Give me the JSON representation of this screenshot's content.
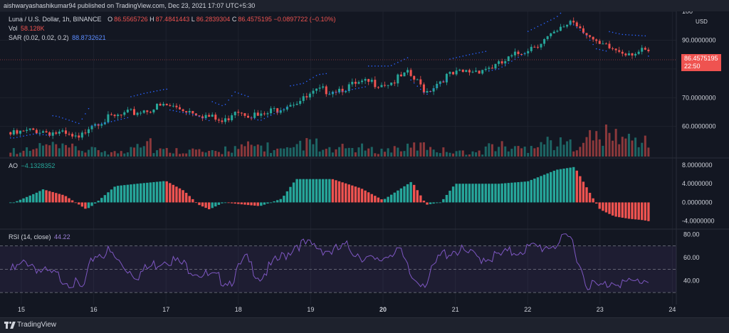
{
  "header": {
    "text": "aishwaryashashikumar94 published on TradingView.com, Dec 23, 2021 17:07 UTC+5:30"
  },
  "legend": {
    "symbol": "Luna / U.S. Dollar, 1h, BINANCE",
    "o_label": "O",
    "o_val": "86.5565726",
    "h_label": "H",
    "h_val": "87.4841443",
    "l_label": "L",
    "l_val": "86.2839304",
    "c_label": "C",
    "c_val": "86.4575195",
    "change": "−0.0897722 (−0.10%)",
    "vol_label": "Vol",
    "vol_val": "58.128K",
    "sar_label": "SAR (0.02, 0.02, 0.2)",
    "sar_val": "88.8732621",
    "ao_label": "AO",
    "ao_val": "−4.1328352",
    "rsi_label": "RSI (14, close)",
    "rsi_val": "44.22"
  },
  "price_axis": {
    "currency": "USD",
    "ticks": [
      "100",
      "90.0000000",
      "80.0000000",
      "70.0000000",
      "60.0000000"
    ],
    "last_price": "86.4575195",
    "countdown": "22:50"
  },
  "ao_axis": {
    "ticks": [
      "8.0000000",
      "4.0000000",
      "0.0000000",
      "-4.0000000"
    ]
  },
  "rsi_axis": {
    "ticks": [
      "80.00",
      "60.00",
      "40.00"
    ]
  },
  "time_axis": {
    "labels": [
      "15",
      "16",
      "17",
      "18",
      "19",
      "20",
      "21",
      "22",
      "23",
      "24"
    ]
  },
  "footer": {
    "brand": "TradingView"
  },
  "colors": {
    "bg": "#131722",
    "up": "#26a69a",
    "down": "#ef5350",
    "sar": "#2962ff",
    "rsi": "#7e57c2",
    "badge": "#ef5350"
  },
  "chart_data": {
    "type": "candlestick",
    "title": "Luna / U.S. Dollar, 1h, BINANCE",
    "price_ylim": [
      52,
      101
    ],
    "price_keypoints_by_day": [
      [
        14.9,
        58
      ],
      [
        15.2,
        59.5
      ],
      [
        15.5,
        58.5
      ],
      [
        15.8,
        56
      ],
      [
        15.95,
        62
      ],
      [
        16.3,
        64
      ],
      [
        16.7,
        66.5
      ],
      [
        17.0,
        68
      ],
      [
        17.4,
        66
      ],
      [
        17.8,
        62
      ],
      [
        17.95,
        67
      ],
      [
        18.3,
        64
      ],
      [
        18.7,
        69
      ],
      [
        18.9,
        70
      ],
      [
        19.1,
        73
      ],
      [
        19.4,
        74
      ],
      [
        19.8,
        76
      ],
      [
        20.1,
        76
      ],
      [
        20.35,
        79
      ],
      [
        20.6,
        73
      ],
      [
        20.85,
        78
      ],
      [
        21.2,
        80
      ],
      [
        21.6,
        82
      ],
      [
        22.0,
        88
      ],
      [
        22.4,
        93
      ],
      [
        22.6,
        98
      ],
      [
        22.8,
        94
      ],
      [
        22.95,
        89
      ],
      [
        23.3,
        87
      ],
      [
        23.65,
        86.46
      ]
    ],
    "volume_relative": [
      0.3,
      0.5,
      0.4,
      0.3,
      0.2,
      0.8,
      0.3,
      0.3,
      0.2,
      0.4,
      0.5,
      0.3,
      0.6,
      0.3,
      0.4,
      0.3,
      0.4,
      0.5,
      0.3,
      0.2,
      0.5,
      0.4,
      0.7,
      0.6,
      0.9,
      1.0,
      0.8,
      0.5
    ],
    "ao_ylim": [
      -4.5,
      8.3
    ],
    "ao_keypoints_by_day": [
      [
        14.9,
        0
      ],
      [
        15.2,
        2
      ],
      [
        15.3,
        2.8
      ],
      [
        15.6,
        1.5
      ],
      [
        15.9,
        -1.5
      ],
      [
        16.0,
        -0.5
      ],
      [
        16.3,
        3.5
      ],
      [
        16.6,
        4
      ],
      [
        17.0,
        4.6
      ],
      [
        17.25,
        2.5
      ],
      [
        17.45,
        -0.5
      ],
      [
        17.6,
        -1.5
      ],
      [
        17.8,
        0
      ],
      [
        18.1,
        -0.5
      ],
      [
        18.3,
        -0.8
      ],
      [
        18.6,
        0.8
      ],
      [
        18.8,
        5
      ],
      [
        19.3,
        5
      ],
      [
        19.7,
        3
      ],
      [
        20.0,
        0.5
      ],
      [
        20.4,
        4.5
      ],
      [
        20.6,
        -0.5
      ],
      [
        20.8,
        0
      ],
      [
        21.0,
        4
      ],
      [
        21.3,
        4
      ],
      [
        21.6,
        4
      ],
      [
        22.0,
        4.5
      ],
      [
        22.4,
        7
      ],
      [
        22.65,
        7.6
      ],
      [
        22.9,
        1
      ],
      [
        23.0,
        -1.5
      ],
      [
        23.2,
        -3
      ],
      [
        23.4,
        -3.5
      ],
      [
        23.6,
        -3.8
      ],
      [
        23.7,
        -4.1
      ]
    ],
    "rsi_ylim": [
      27,
      82
    ],
    "rsi_keypoints_by_day": [
      [
        14.9,
        52
      ],
      [
        15.1,
        60
      ],
      [
        15.3,
        50
      ],
      [
        15.5,
        47
      ],
      [
        15.7,
        42
      ],
      [
        15.85,
        35
      ],
      [
        16.0,
        65
      ],
      [
        16.2,
        68
      ],
      [
        16.4,
        56
      ],
      [
        16.6,
        48
      ],
      [
        17.0,
        63
      ],
      [
        17.3,
        55
      ],
      [
        17.6,
        46
      ],
      [
        17.9,
        43
      ],
      [
        18.1,
        62
      ],
      [
        18.3,
        46
      ],
      [
        18.5,
        58
      ],
      [
        18.7,
        68
      ],
      [
        18.8,
        75
      ],
      [
        19.1,
        72
      ],
      [
        19.3,
        68
      ],
      [
        19.5,
        72
      ],
      [
        19.7,
        65
      ],
      [
        19.9,
        58
      ],
      [
        20.2,
        72
      ],
      [
        20.4,
        45
      ],
      [
        20.6,
        42
      ],
      [
        20.8,
        65
      ],
      [
        21.0,
        70
      ],
      [
        21.3,
        63
      ],
      [
        21.6,
        64
      ],
      [
        21.9,
        70
      ],
      [
        22.2,
        72
      ],
      [
        22.4,
        75
      ],
      [
        22.6,
        80
      ],
      [
        22.8,
        42
      ],
      [
        23.0,
        37
      ],
      [
        23.2,
        44
      ],
      [
        23.4,
        40
      ],
      [
        23.6,
        44
      ]
    ],
    "rsi_band": [
      30,
      70
    ]
  }
}
